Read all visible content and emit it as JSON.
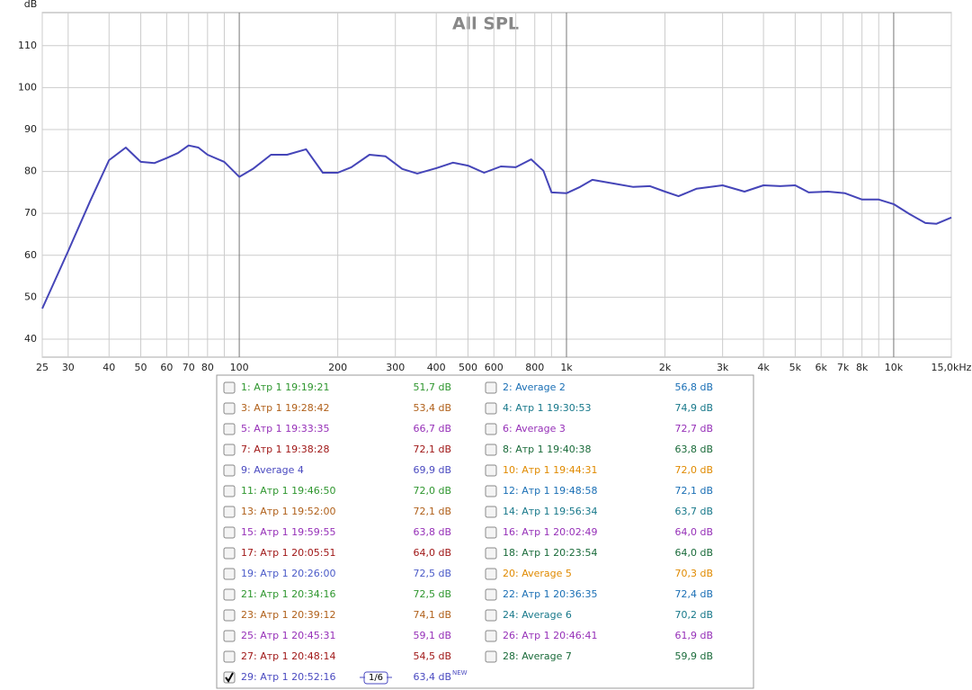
{
  "chart_data": {
    "type": "line",
    "title": "All SPL",
    "y_label": "dB",
    "log_x": true,
    "grid": true,
    "xlim": [
      25,
      15000
    ],
    "ylim": [
      35.7,
      117.9
    ],
    "yticks": [
      40,
      50,
      60,
      70,
      80,
      90,
      100,
      110
    ],
    "xticks": [
      25,
      30,
      40,
      50,
      60,
      70,
      80,
      {
        "value": 90,
        "label": null
      },
      100,
      200,
      300,
      400,
      500,
      600,
      {
        "value": 700,
        "label": null
      },
      800,
      {
        "value": 900,
        "label": null
      },
      {
        "value": 1000,
        "label": "1k"
      },
      {
        "value": 2000,
        "label": "2k"
      },
      {
        "value": 3000,
        "label": "3k"
      },
      {
        "value": 4000,
        "label": "4k"
      },
      {
        "value": 5000,
        "label": "5k"
      },
      {
        "value": 6000,
        "label": "6k"
      },
      {
        "value": 7000,
        "label": "7k"
      },
      {
        "value": 8000,
        "label": "8k"
      },
      {
        "value": 9000,
        "label": null
      },
      {
        "value": 10000,
        "label": "10k"
      },
      {
        "value": 15000,
        "label": "15,0kHz"
      }
    ],
    "x": [
      25,
      30,
      35,
      40,
      45,
      50,
      55,
      60,
      65,
      70,
      75,
      80,
      90,
      100,
      110,
      125,
      140,
      160,
      180,
      200,
      220,
      250,
      280,
      315,
      350,
      400,
      450,
      500,
      560,
      630,
      700,
      780,
      850,
      900,
      1000,
      1100,
      1200,
      1400,
      1600,
      1800,
      2000,
      2200,
      2500,
      3000,
      3500,
      4000,
      4500,
      5000,
      5500,
      6300,
      7100,
      8000,
      9000,
      10000,
      11200,
      12500,
      13500,
      15000
    ],
    "series": [
      {
        "name": "29: Aтр 1 20:52:16",
        "color": "#4545b8",
        "values": [
          47.3,
          61,
          72.9,
          82.7,
          85.7,
          82.3,
          82,
          83.2,
          84.4,
          86.2,
          85.7,
          84,
          82.3,
          78.7,
          80.6,
          84,
          84,
          85.3,
          79.7,
          79.7,
          81,
          84,
          83.6,
          80.6,
          79.5,
          80.8,
          82.1,
          81.4,
          79.7,
          81.2,
          81,
          82.9,
          80.2,
          75,
          74.8,
          76.3,
          78,
          77.1,
          76.3,
          76.5,
          75.2,
          74.1,
          75.9,
          76.7,
          75.2,
          76.7,
          76.5,
          76.7,
          75,
          75.2,
          74.8,
          73.3,
          73.3,
          72.2,
          69.8,
          67.7,
          67.5,
          69
        ]
      }
    ]
  },
  "legend_panel": {
    "items": [
      {
        "label": "1: Aтр 1 19:19:21",
        "value": "51,7 dB",
        "color": "#2e962e",
        "checked": false
      },
      {
        "label": "2: Average 2",
        "value": "56,8 dB",
        "color": "#1a6fb5",
        "checked": false
      },
      {
        "label": "3: Aтр 1 19:28:42",
        "value": "53,4 dB",
        "color": "#b0601a",
        "checked": false
      },
      {
        "label": "4: Aтр 1 19:30:53",
        "value": "74,9 dB",
        "color": "#17788a",
        "checked": false
      },
      {
        "label": "5: Aтр 1 19:33:35",
        "value": "66,7 dB",
        "color": "#9630b8",
        "checked": false
      },
      {
        "label": "6: Average 3",
        "value": "72,7 dB",
        "color": "#9630b8",
        "checked": false
      },
      {
        "label": "7: Aтр 1 19:38:28",
        "value": "72,1 dB",
        "color": "#a01818",
        "checked": false
      },
      {
        "label": "8: Aтр 1 19:40:38",
        "value": "63,8 dB",
        "color": "#1a6b3a",
        "checked": false
      },
      {
        "label": "9: Average 4",
        "value": "69,9 dB",
        "color": "#4a4ac0",
        "checked": false
      },
      {
        "label": "10: Aтр 1 19:44:31",
        "value": "72,0 dB",
        "color": "#e08a00",
        "checked": false
      },
      {
        "label": "11: Aтр 1 19:46:50",
        "value": "72,0 dB",
        "color": "#2e962e",
        "checked": false
      },
      {
        "label": "12: Aтр 1 19:48:58",
        "value": "72,1 dB",
        "color": "#1a6fb5",
        "checked": false
      },
      {
        "label": "13: Aтр 1 19:52:00",
        "value": "72,1 dB",
        "color": "#b0601a",
        "checked": false
      },
      {
        "label": "14: Aтр 1 19:56:34",
        "value": "63,7 dB",
        "color": "#17788a",
        "checked": false
      },
      {
        "label": "15: Aтр 1 19:59:55",
        "value": "63,8 dB",
        "color": "#9630b8",
        "checked": false
      },
      {
        "label": "16: Aтр 1 20:02:49",
        "value": "64,0 dB",
        "color": "#9630b8",
        "checked": false
      },
      {
        "label": "17: Aтр 1 20:05:51",
        "value": "64,0 dB",
        "color": "#a01818",
        "checked": false
      },
      {
        "label": "18: Aтр 1 20:23:54",
        "value": "64,0 dB",
        "color": "#1a6b3a",
        "checked": false
      },
      {
        "label": "19: Aтр 1 20:26:00",
        "value": "72,5 dB",
        "color": "#4a5ac8",
        "checked": false
      },
      {
        "label": "20: Average 5",
        "value": "70,3 dB",
        "color": "#e08a00",
        "checked": false
      },
      {
        "label": "21: Aтр 1 20:34:16",
        "value": "72,5 dB",
        "color": "#2e962e",
        "checked": false
      },
      {
        "label": "22: Aтр 1 20:36:35",
        "value": "72,4 dB",
        "color": "#1a6fb5",
        "checked": false
      },
      {
        "label": "23: Aтр 1 20:39:12",
        "value": "74,1 dB",
        "color": "#b0601a",
        "checked": false
      },
      {
        "label": "24: Average 6",
        "value": "70,2 dB",
        "color": "#17788a",
        "checked": false
      },
      {
        "label": "25: Aтр 1 20:45:31",
        "value": "59,1 dB",
        "color": "#9630b8",
        "checked": false
      },
      {
        "label": "26: Aтр 1 20:46:41",
        "value": "61,9 dB",
        "color": "#9630b8",
        "checked": false
      },
      {
        "label": "27: Aтр 1 20:48:14",
        "value": "54,5 dB",
        "color": "#a01818",
        "checked": false
      },
      {
        "label": "28: Average 7",
        "value": "59,9 dB",
        "color": "#1a6b3a",
        "checked": false
      },
      {
        "label": "29: Aтр 1 20:52:16",
        "value": "63,4 dB",
        "color": "#4a4ac0",
        "checked": true,
        "smoothing": "1/6",
        "badge": "NEW"
      }
    ]
  }
}
